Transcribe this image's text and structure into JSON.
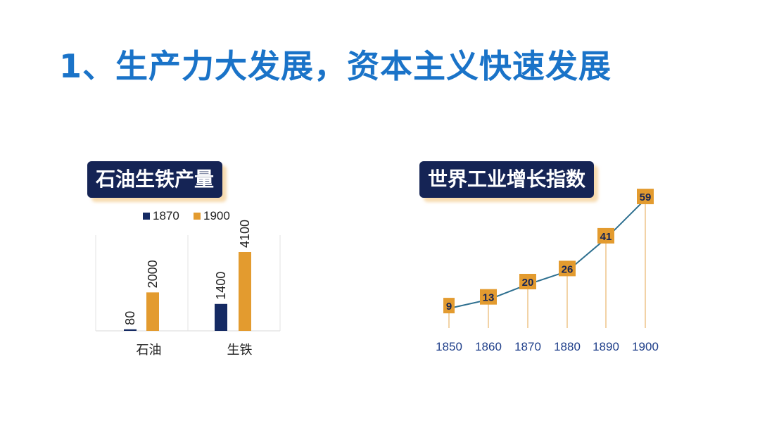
{
  "title": "1、生产力大发展，资本主义快速发展",
  "colors": {
    "title": "#1a73c8",
    "pill_bg": "#152455",
    "series_1870": "#152a63",
    "series_1900": "#e39b2f",
    "line": "#2d6f8f",
    "label_bg": "#e39b2f",
    "year_text": "#1f3f8a"
  },
  "chart_data": [
    {
      "type": "bar",
      "title": "石油生铁产量",
      "categories": [
        "石油",
        "生铁"
      ],
      "series": [
        {
          "name": "1870",
          "values": [
            80,
            1400
          ]
        },
        {
          "name": "1900",
          "values": [
            2000,
            4100
          ]
        }
      ],
      "legend": "top",
      "ylim": [
        0,
        4500
      ],
      "data_labels": true,
      "grid": false
    },
    {
      "type": "line",
      "title": "世界工业增长指数",
      "x": [
        "1850",
        "1860",
        "1870",
        "1880",
        "1890",
        "1900"
      ],
      "values": [
        9,
        13,
        20,
        26,
        41,
        59
      ],
      "data_labels": true,
      "grid": false
    }
  ]
}
